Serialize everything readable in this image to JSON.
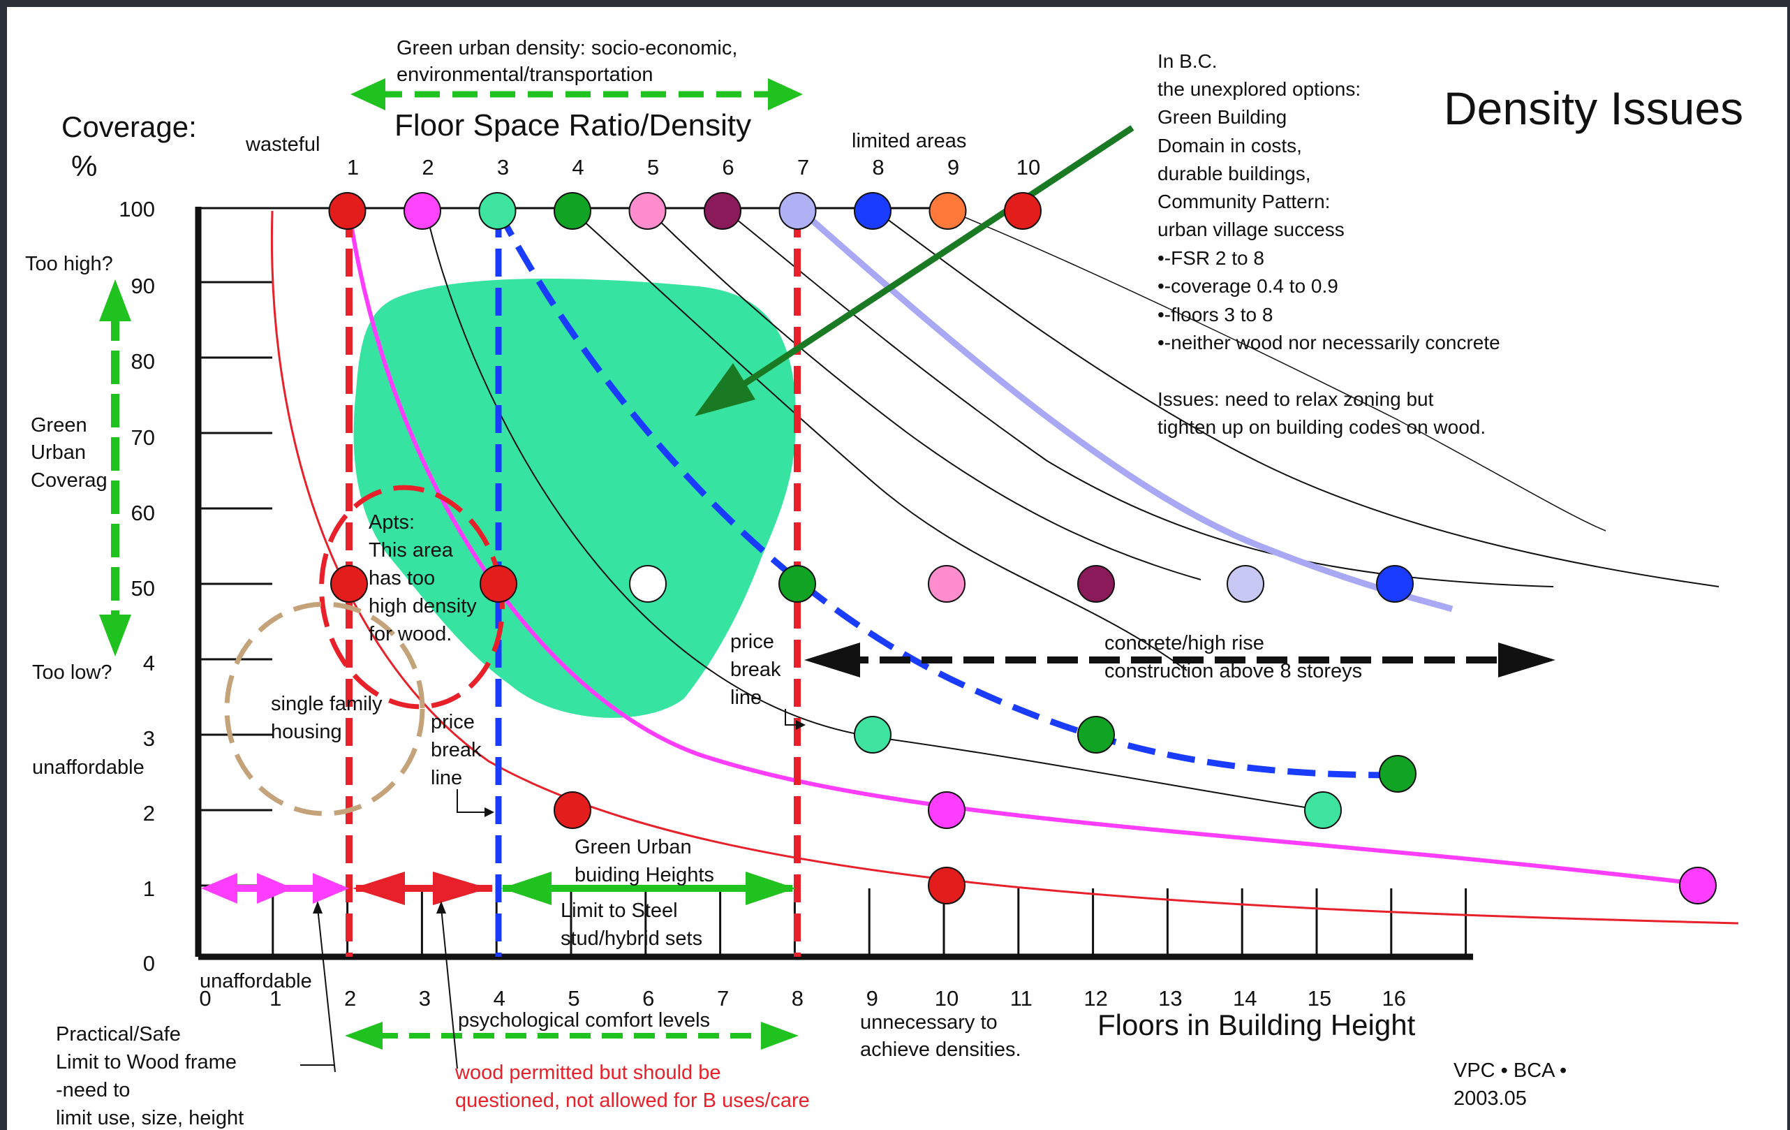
{
  "title": "Density Issues",
  "top_arrow_label": [
    "Green urban density: socio-economic,",
    "environmental/transportation"
  ],
  "fsr_axis_title": "Floor Space Ratio/Density",
  "coverage_axis_title": [
    "Coverage:",
    "%"
  ],
  "fsr_axis_labels": {
    "wasteful": "wasteful",
    "limited_areas": "limited areas",
    "ticks": [
      "1",
      "2",
      "3",
      "4",
      "5",
      "6",
      "7",
      "8",
      "9",
      "10"
    ]
  },
  "coverage_ticks": [
    "100",
    "90",
    "80",
    "70",
    "60",
    "50",
    "4",
    "3",
    "2",
    "1",
    "0"
  ],
  "left_labels": {
    "too_high": "Too high?",
    "too_low": "Too low?",
    "green_coverage": [
      "Green",
      "Urban",
      "Coverag"
    ],
    "unaffordable_side": "unaffordable"
  },
  "floors_axis": {
    "title": "Floors in Building Height",
    "ticks": [
      "0",
      "1",
      "2",
      "3",
      "4",
      "5",
      "6",
      "7",
      "8",
      "9",
      "10",
      "11",
      "12",
      "13",
      "14",
      "15",
      "16"
    ],
    "unaffordable": "unaffordable",
    "psych_comfort": "psychological comfort levels",
    "unnecessary": [
      "unnecessary to",
      "achieve densities."
    ]
  },
  "annotations": {
    "bc_note": [
      "In B.C.",
      "the unexplored options:",
      "Green Building",
      "Domain in costs,",
      "durable buildings,",
      "Community Pattern:",
      "urban village success",
      "•-FSR 2 to 8",
      "•-coverage 0.4 to 0.9",
      "•-floors 3 to 8",
      "•-neither wood nor necessarily concrete"
    ],
    "issues": [
      "Issues: need to relax zoning but",
      "tighten up on building codes on wood."
    ],
    "apts": [
      "Apts:",
      "This area",
      "has too",
      "high density",
      "for wood."
    ],
    "single_family": [
      "single family",
      "housing"
    ],
    "price_break_1": [
      "price",
      "break",
      "line"
    ],
    "price_break_2": [
      "price",
      "break",
      "line"
    ],
    "concrete": [
      "concrete/high rise",
      "construction above 8 storeys"
    ],
    "green_heights": [
      "Green Urban",
      "buiding Heights"
    ],
    "steel": [
      "Limit to Steel",
      "stud/hybrid sets"
    ],
    "wood_frame": [
      "Practical/Safe",
      "Limit to Wood frame",
      "-need to",
      "limit use, size, height"
    ],
    "wood_permitted": [
      "wood permitted but should be",
      "questioned, not  allowed for B uses/care"
    ],
    "credit": [
      "VPC • BCA •",
      "2003.05"
    ]
  },
  "colors": {
    "background": "#ffffff",
    "window_frame": "#2b3038",
    "green_zone": "#36e3a0",
    "green_arrow": "#1fc21f",
    "dark_green_arrow": "#1a7a24",
    "red": "#e8202a",
    "blue": "#1a3cff",
    "magenta": "#ff3dff",
    "tan": "#c4a27a",
    "fsr_dots": [
      "#e31c1c",
      "#ff44ff",
      "#3fe3a0",
      "#11a324",
      "#ff8ccc",
      "#8b1a5a",
      "#b0b0f4",
      "#1a3cff",
      "#ff7a3a",
      "#e31c1c"
    ]
  }
}
